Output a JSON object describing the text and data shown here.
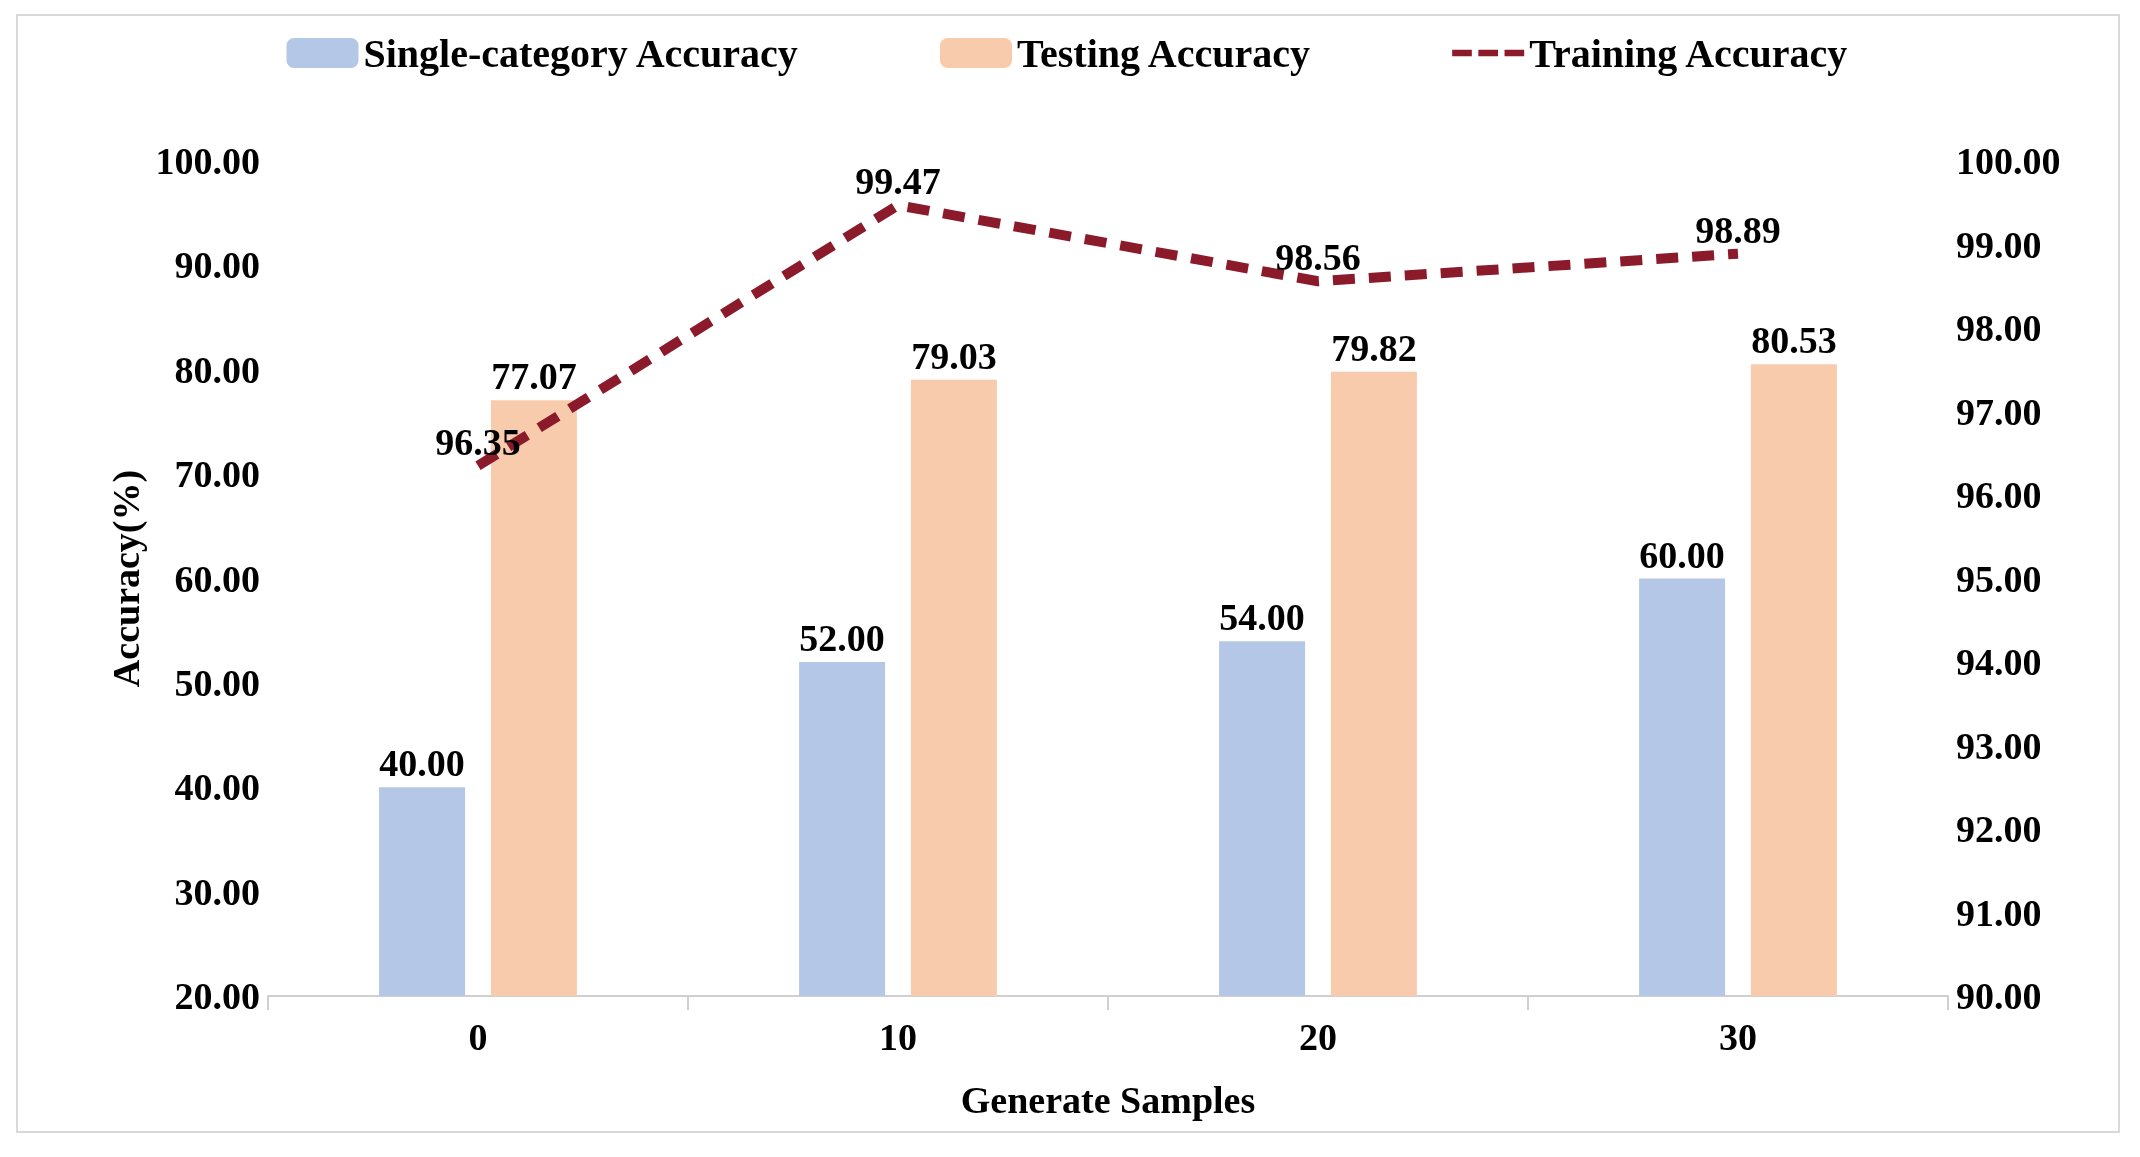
{
  "chart_data": {
    "type": "bar",
    "xlabel": "Generate Samples",
    "ylabel": "Accuracy(%)",
    "categories": [
      "0",
      "10",
      "20",
      "30"
    ],
    "series": [
      {
        "name": "Single-category Accuracy",
        "color": "#b4c7e7",
        "values": [
          40,
          52,
          54,
          60
        ],
        "value_labels": [
          "40.00",
          "52.00",
          "54.00",
          "60.00"
        ]
      },
      {
        "name": "Testing Accuracy",
        "color": "#f8cbad",
        "values": [
          77.07,
          79.03,
          79.82,
          80.53
        ],
        "value_labels": [
          "77.07",
          "79.03",
          "79.82",
          "80.53"
        ]
      },
      {
        "name": "Training Accuracy",
        "type": "line",
        "axis": "y2",
        "color": "#8b1a2b",
        "line_style": "dashed",
        "marker": "none",
        "values": [
          96.35,
          99.47,
          98.56,
          98.89
        ],
        "value_labels": [
          "96.35",
          "99.47",
          "98.56",
          "98.89"
        ]
      }
    ],
    "ylim": [
      20,
      100
    ],
    "yticks": [
      {
        "value": 20,
        "label": "20.00"
      },
      {
        "value": 30,
        "label": "30.00"
      },
      {
        "value": 40,
        "label": "40.00"
      },
      {
        "value": 50,
        "label": "50.00"
      },
      {
        "value": 60,
        "label": "60.00"
      },
      {
        "value": 70,
        "label": "70.00"
      },
      {
        "value": 80,
        "label": "80.00"
      },
      {
        "value": 90,
        "label": "90.00"
      },
      {
        "value": 100,
        "label": "100.00"
      }
    ],
    "y2lim": [
      90,
      100
    ],
    "y2ticks": [
      {
        "value": 90,
        "label": "90.00"
      },
      {
        "value": 91,
        "label": "91.00"
      },
      {
        "value": 92,
        "label": "92.00"
      },
      {
        "value": 93,
        "label": "93.00"
      },
      {
        "value": 94,
        "label": "94.00"
      },
      {
        "value": 95,
        "label": "95.00"
      },
      {
        "value": 96,
        "label": "96.00"
      },
      {
        "value": 97,
        "label": "97.00"
      },
      {
        "value": 98,
        "label": "98.00"
      },
      {
        "value": 99,
        "label": "99.00"
      },
      {
        "value": 100,
        "label": "100.00"
      }
    ],
    "grid": false,
    "legend": "top"
  }
}
